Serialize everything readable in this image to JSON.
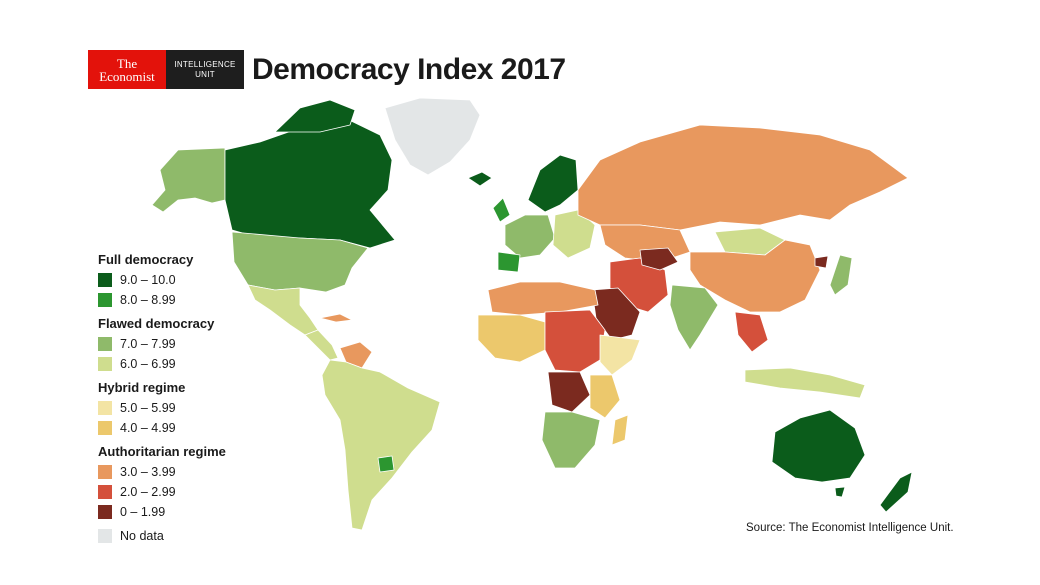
{
  "header": {
    "logo": {
      "line1": "The",
      "line2": "Economist",
      "unit_line1": "INTELLIGENCE",
      "unit_line2": "UNIT"
    },
    "title": "Democracy Index 2017"
  },
  "colors": {
    "full_high": "#0b5c1b",
    "full_low": "#2c9630",
    "flawed_high": "#8fba6a",
    "flawed_low": "#cfdd8e",
    "hybrid_high": "#f3e4a4",
    "hybrid_low": "#ecc86c",
    "auth_high": "#e8985e",
    "auth_mid": "#d4503b",
    "auth_low": "#7b2a1f",
    "no_data": "#e3e6e7",
    "border": "#ffffff"
  },
  "legend": {
    "groups": [
      {
        "title": "Full democracy",
        "items": [
          {
            "range": "9.0 – 10.0",
            "color": "#0b5c1b"
          },
          {
            "range": "8.0 – 8.99",
            "color": "#2c9630"
          }
        ]
      },
      {
        "title": "Flawed democracy",
        "items": [
          {
            "range": "7.0 – 7.99",
            "color": "#8fba6a"
          },
          {
            "range": "6.0 – 6.99",
            "color": "#cfdd8e"
          }
        ]
      },
      {
        "title": "Hybrid regime",
        "items": [
          {
            "range": "5.0 – 5.99",
            "color": "#f3e4a4"
          },
          {
            "range": "4.0 – 4.99",
            "color": "#ecc86c"
          }
        ]
      },
      {
        "title": "Authoritarian regime",
        "items": [
          {
            "range": "3.0 – 3.99",
            "color": "#e8985e"
          },
          {
            "range": "2.0 – 2.99",
            "color": "#d4503b"
          },
          {
            "range": "0 – 1.99",
            "color": "#7b2a1f"
          }
        ]
      }
    ],
    "no_data": {
      "label": "No data",
      "color": "#e3e6e7"
    }
  },
  "source": "Source: The Economist Intelligence Unit."
}
